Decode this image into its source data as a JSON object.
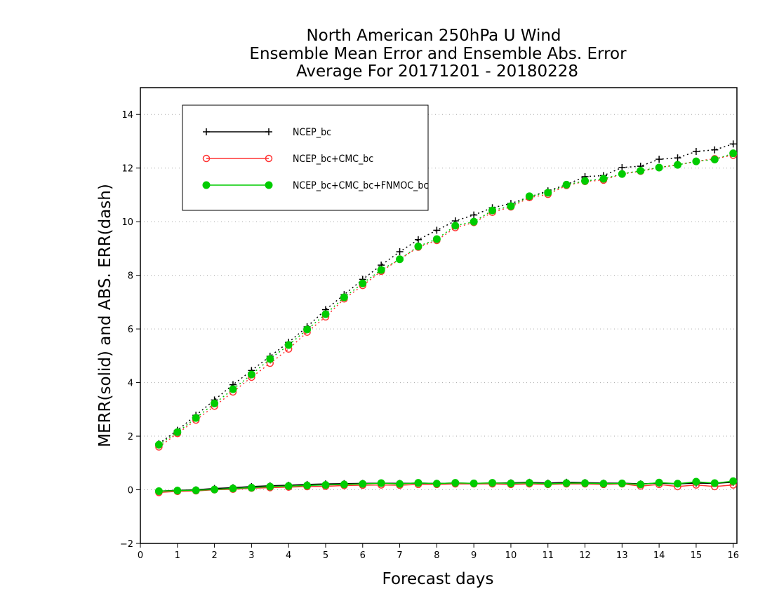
{
  "chart_data": {
    "type": "line",
    "title": [
      "North American 250hPa U Wind",
      "Ensemble Mean Error and Ensemble Abs. Error",
      "Average For 20171201 - 20180228"
    ],
    "xlabel": "Forecast days",
    "ylabel": "MERR(solid) and ABS. ERR(dash)",
    "xlim": [
      0,
      16.1
    ],
    "ylim": [
      -2,
      15
    ],
    "xticks": [
      0,
      1,
      2,
      3,
      4,
      5,
      6,
      7,
      8,
      9,
      10,
      11,
      12,
      13,
      14,
      15,
      16
    ],
    "yticks": [
      -2,
      0,
      2,
      4,
      6,
      8,
      10,
      12,
      14
    ],
    "grid": "horizontal dotted",
    "legend_position": "top-left",
    "x": [
      0.5,
      1,
      1.5,
      2,
      2.5,
      3,
      3.5,
      4,
      4.5,
      5,
      5.5,
      6,
      6.5,
      7,
      7.5,
      8,
      8.5,
      9,
      9.5,
      10,
      10.5,
      11,
      11.5,
      12,
      12.5,
      13,
      13.5,
      14,
      14.5,
      15,
      15.5,
      16
    ],
    "series": [
      {
        "name": "NCEP_bc",
        "color": "#000000",
        "marker": "plus",
        "abs_err": [
          1.72,
          2.22,
          2.78,
          3.35,
          3.92,
          4.45,
          4.98,
          5.5,
          6.08,
          6.72,
          7.28,
          7.85,
          8.38,
          8.88,
          9.33,
          9.68,
          10.03,
          10.25,
          10.52,
          10.68,
          10.92,
          11.15,
          11.38,
          11.68,
          11.72,
          12.02,
          12.07,
          12.33,
          12.38,
          12.62,
          12.68,
          12.9
        ],
        "mean_err": [
          -0.05,
          -0.02,
          0.0,
          0.05,
          0.08,
          0.12,
          0.15,
          0.17,
          0.2,
          0.22,
          0.23,
          0.24,
          0.25,
          0.24,
          0.25,
          0.24,
          0.25,
          0.24,
          0.25,
          0.26,
          0.28,
          0.25,
          0.28,
          0.27,
          0.25,
          0.25,
          0.22,
          0.25,
          0.22,
          0.25,
          0.24,
          0.28
        ]
      },
      {
        "name": "NCEP_bc+CMC_bc",
        "color": "#ff3333",
        "marker": "open-circle",
        "abs_err": [
          1.6,
          2.1,
          2.6,
          3.12,
          3.65,
          4.2,
          4.72,
          5.25,
          5.88,
          6.45,
          7.12,
          7.62,
          8.15,
          8.6,
          9.05,
          9.3,
          9.78,
          9.97,
          10.35,
          10.55,
          10.9,
          11.02,
          11.35,
          11.5,
          11.55,
          11.78,
          11.88,
          12.02,
          12.12,
          12.25,
          12.35,
          12.48
        ],
        "mean_err": [
          -0.1,
          -0.06,
          -0.04,
          0.0,
          0.02,
          0.06,
          0.08,
          0.1,
          0.12,
          0.13,
          0.16,
          0.17,
          0.18,
          0.17,
          0.2,
          0.2,
          0.22,
          0.22,
          0.22,
          0.2,
          0.22,
          0.2,
          0.22,
          0.22,
          0.2,
          0.22,
          0.14,
          0.2,
          0.12,
          0.18,
          0.12,
          0.18
        ]
      },
      {
        "name": "NCEP_bc+CMC_bc+FNMOC_bc",
        "color": "#00cc00",
        "marker": "filled-circle",
        "abs_err": [
          1.68,
          2.15,
          2.68,
          3.22,
          3.75,
          4.3,
          4.88,
          5.4,
          5.98,
          6.55,
          7.18,
          7.7,
          8.2,
          8.6,
          9.08,
          9.35,
          9.85,
          10.0,
          10.42,
          10.58,
          10.95,
          11.08,
          11.38,
          11.52,
          11.6,
          11.78,
          11.9,
          12.02,
          12.12,
          12.25,
          12.32,
          12.55
        ],
        "mean_err": [
          -0.05,
          -0.03,
          -0.02,
          0.01,
          0.05,
          0.08,
          0.12,
          0.14,
          0.16,
          0.18,
          0.2,
          0.22,
          0.25,
          0.22,
          0.26,
          0.23,
          0.26,
          0.24,
          0.26,
          0.24,
          0.26,
          0.22,
          0.25,
          0.25,
          0.23,
          0.24,
          0.2,
          0.27,
          0.23,
          0.3,
          0.25,
          0.32
        ]
      }
    ]
  }
}
